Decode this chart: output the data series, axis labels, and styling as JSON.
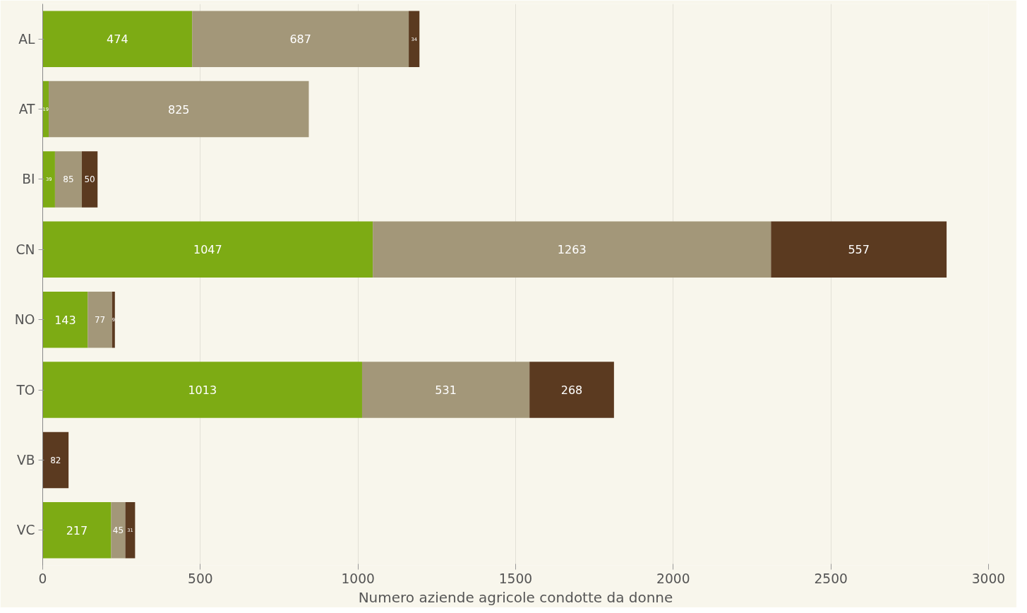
{
  "chart_data": {
    "type": "bar",
    "orientation": "horizontal",
    "stacked": true,
    "xlabel": "Numero aziende agricole condotte da donne",
    "categories": [
      "AL",
      "AT",
      "BI",
      "CN",
      "NO",
      "TO",
      "VB",
      "VC"
    ],
    "series": [
      {
        "color": "#7dab14",
        "values": [
          474,
          19,
          39,
          1047,
          143,
          1013,
          null,
          217
        ]
      },
      {
        "color": "#a39779",
        "values": [
          687,
          825,
          85,
          1263,
          77,
          531,
          null,
          45
        ]
      },
      {
        "color": "#5b3a20",
        "values": [
          34,
          null,
          50,
          557,
          9,
          268,
          82,
          31
        ]
      }
    ],
    "xlim": [
      0,
      3000
    ],
    "xticks": [
      0,
      500,
      1000,
      1500,
      2000,
      2500,
      3000
    ],
    "grid": "x",
    "data_labels": true
  }
}
